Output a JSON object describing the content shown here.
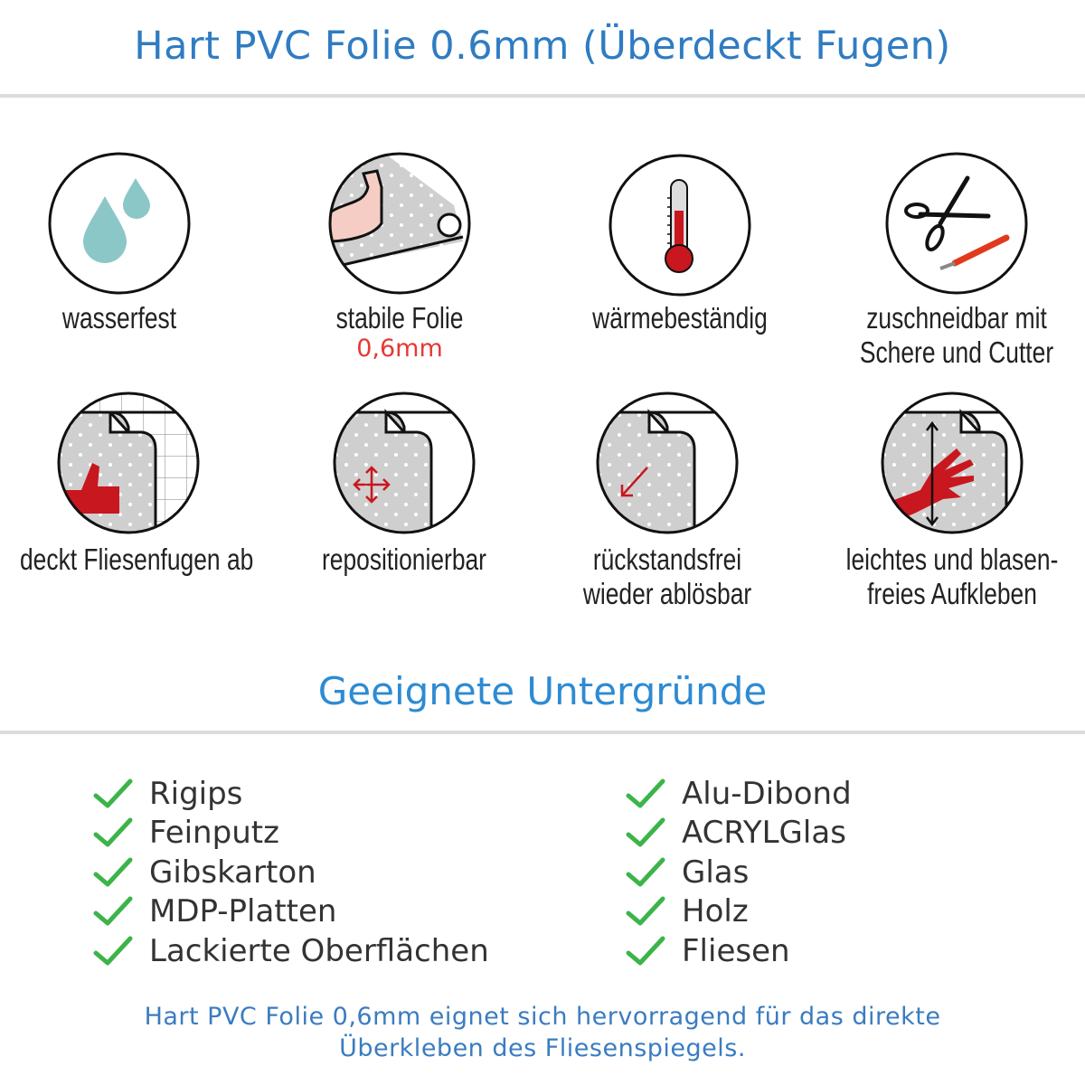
{
  "header": {
    "title": "Hart PVC Folie 0.6mm (Überdeckt Fugen)"
  },
  "features": [
    {
      "icon": "water-drops-icon",
      "label": "wasserfest"
    },
    {
      "icon": "strong-arm-icon",
      "label": "stabile Folie",
      "sublabel": "0,6mm"
    },
    {
      "icon": "thermometer-icon",
      "label": "wärmebeständig"
    },
    {
      "icon": "scissors-cutter-icon",
      "label": "zuschneidbar mit",
      "label2": "Schere und Cutter"
    },
    {
      "icon": "thumbs-up-tiles-icon",
      "label": "deckt Fliesenfugen ab"
    },
    {
      "icon": "move-arrows-icon",
      "label": "repositionierbar"
    },
    {
      "icon": "peel-off-icon",
      "label": "rückstandsfrei",
      "label2": "wieder ablösbar"
    },
    {
      "icon": "hand-smooth-icon",
      "label": "leichtes und blasen-",
      "label2": "freies Aufkleben"
    }
  ],
  "surfaces": {
    "title": "Geeignete Untergründe",
    "left": [
      "Rigips",
      "Feinputz",
      "Gibskarton",
      "MDP-Platten",
      "Lackierte Oberflächen"
    ],
    "right": [
      "Alu-Dibond",
      "ACRYLGlas",
      "Glas",
      "Holz",
      "Fliesen"
    ]
  },
  "footer": {
    "line1": "Hart PVC Folie 0,6mm eignet sich hervorragend für das direkte",
    "line2": "Überkleben des Fliesenspiegels."
  },
  "colors": {
    "title": "#2f7cc2",
    "accent_red": "#e53935",
    "check": "#3cb44a",
    "drop": "#8cc7c7",
    "icon_red": "#c8171e"
  }
}
